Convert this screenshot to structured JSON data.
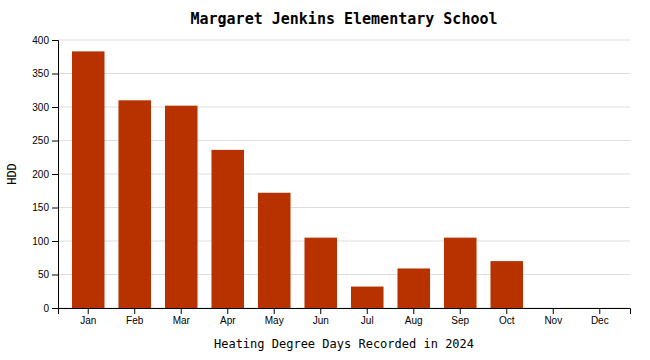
{
  "chart_data": {
    "type": "bar",
    "title": "Margaret Jenkins Elementary School",
    "xlabel": "Heating Degree Days Recorded in 2024",
    "ylabel": "HDD",
    "categories": [
      "Jan",
      "Feb",
      "Mar",
      "Apr",
      "May",
      "Jun",
      "Jul",
      "Aug",
      "Sep",
      "Oct",
      "Nov",
      "Dec"
    ],
    "values": [
      383,
      310,
      302,
      236,
      172,
      105,
      32,
      59,
      105,
      70,
      0,
      0
    ],
    "color": "#B83200",
    "ylim": [
      0,
      400
    ],
    "yticks": [
      0,
      50,
      100,
      150,
      200,
      250,
      300,
      350,
      400
    ],
    "grid": true
  }
}
